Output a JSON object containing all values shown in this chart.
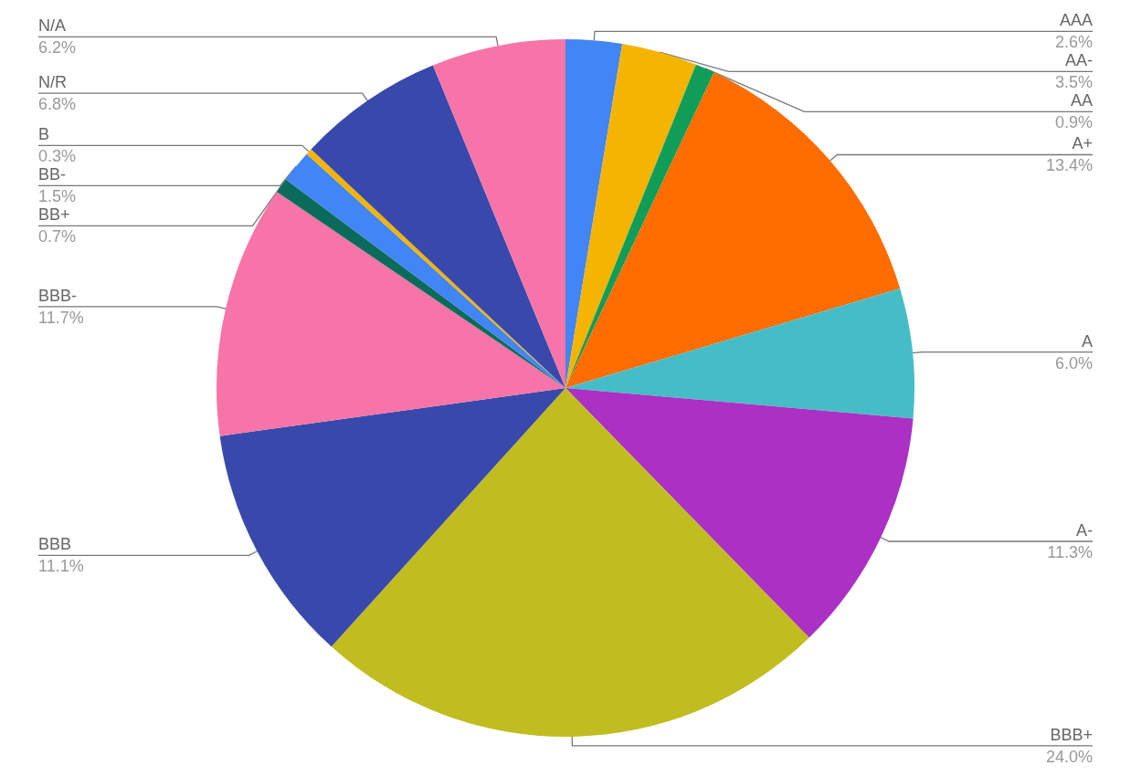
{
  "chart_data": {
    "type": "pie",
    "categories": [
      "AAA",
      "AA-",
      "AA",
      "A+",
      "A",
      "A-",
      "BBB+",
      "BBB",
      "BBB-",
      "BB+",
      "BB-",
      "B",
      "N/R",
      "N/A"
    ],
    "values": [
      2.6,
      3.5,
      0.9,
      13.4,
      6.0,
      11.3,
      24.0,
      11.1,
      11.7,
      0.7,
      1.5,
      0.3,
      6.8,
      6.2
    ],
    "colors": [
      "#4285f4",
      "#f4b400",
      "#0f9d58",
      "#ff6d00",
      "#46bdc6",
      "#ab30c4",
      "#c1bc20",
      "#3949ab",
      "#f774a8",
      "#0b6b5b",
      "#4285f4",
      "#f4b400",
      "#3949ab",
      "#f774a8"
    ],
    "value_labels": [
      "2.6%",
      "3.5%",
      "0.9%",
      "13.4%",
      "6.0%",
      "11.3%",
      "24.0%",
      "11.1%",
      "11.7%",
      "0.7%",
      "1.5%",
      "0.3%",
      "6.8%",
      "6.2%"
    ],
    "legend": false
  }
}
